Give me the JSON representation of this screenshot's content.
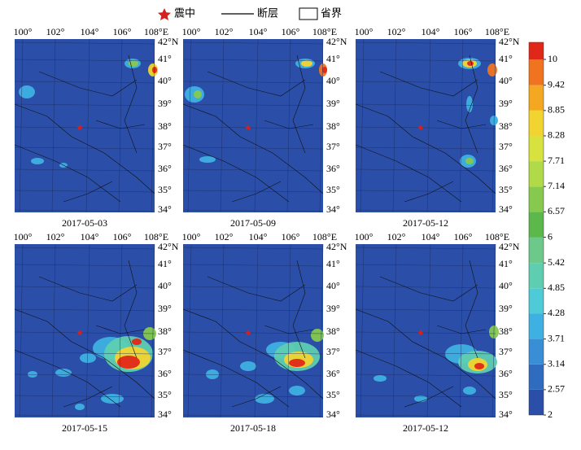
{
  "legend": {
    "epicenter": "震中",
    "fault": "断层",
    "boundary": "省界"
  },
  "lon_labels": [
    "100°",
    "102°",
    "104°",
    "106°",
    "108°E"
  ],
  "lat_labels": [
    "42°N",
    "41°",
    "40°",
    "39°",
    "38°",
    "37°",
    "36°",
    "35°",
    "34°"
  ],
  "panels": [
    {
      "date": "2017-05-03"
    },
    {
      "date": "2017-05-09"
    },
    {
      "date": "2017-05-12"
    },
    {
      "date": "2017-05-15"
    },
    {
      "date": "2017-05-18"
    },
    {
      "date": "2017-05-12"
    }
  ],
  "colorbar": {
    "ticks": [
      2,
      2.57,
      3.14,
      3.71,
      4.28,
      4.85,
      5.42,
      6.0,
      6.57,
      7.14,
      7.71,
      8.28,
      8.85,
      9.42,
      10
    ],
    "colors": [
      "#2b4fa8",
      "#2f6cc0",
      "#3a8ed6",
      "#3fb0e2",
      "#4ecbd6",
      "#5ecdb0",
      "#6cc98a",
      "#5cb84a",
      "#86c94e",
      "#b0da48",
      "#d8e23e",
      "#f2d430",
      "#f4a822",
      "#f07420",
      "#e02818"
    ]
  }
}
